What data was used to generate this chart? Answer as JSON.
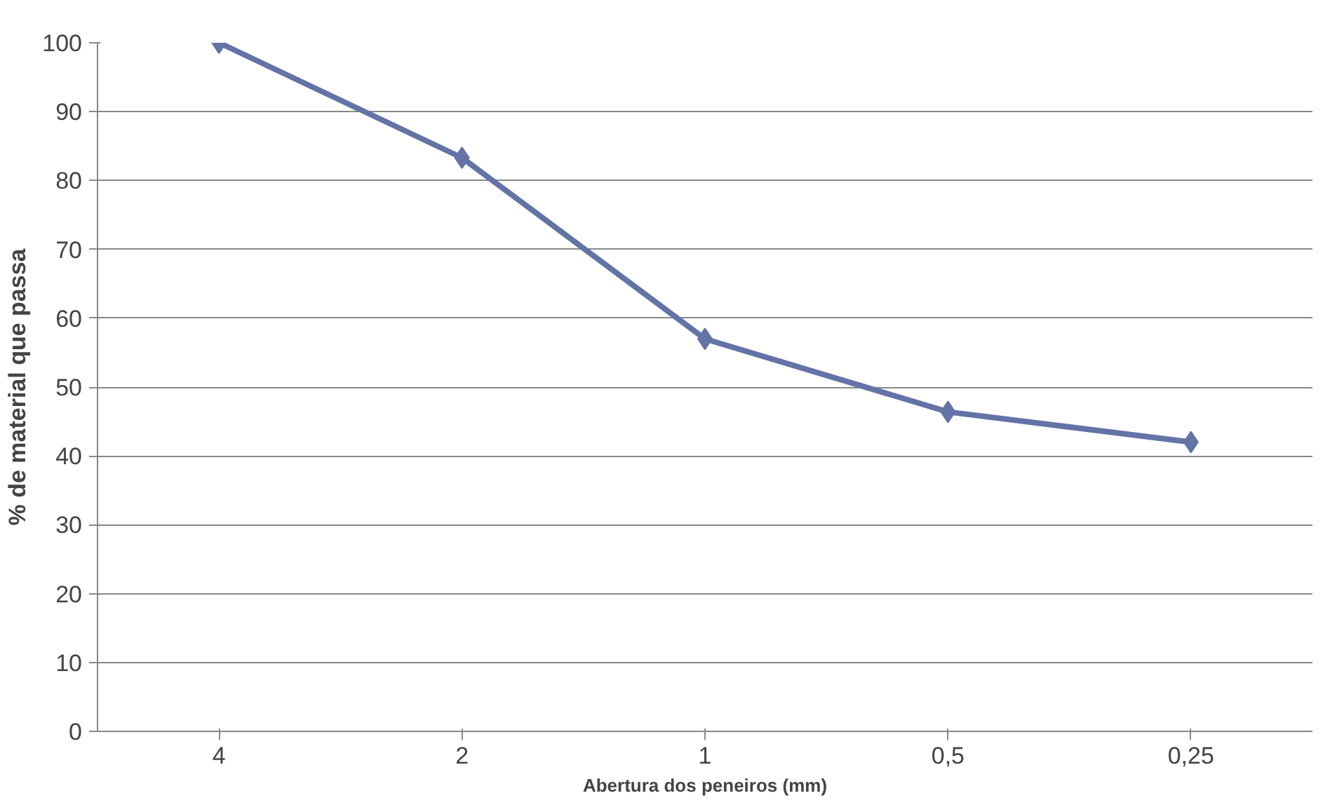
{
  "chart_data": {
    "type": "line",
    "xlabel": "Abertura dos peneiros (mm)",
    "ylabel": "% de material que passa",
    "categories": [
      "4",
      "2",
      "1",
      "0,5",
      "0,25"
    ],
    "series": [
      {
        "color": "#6473a6",
        "values": [
          100,
          83.3,
          57,
          46.4,
          42
        ]
      }
    ],
    "ylim": [
      0,
      100
    ],
    "yticks": [
      0,
      10,
      20,
      30,
      40,
      50,
      60,
      70,
      80,
      90,
      100
    ],
    "grid": "y",
    "marker": "diamond",
    "line_style": "solid"
  }
}
